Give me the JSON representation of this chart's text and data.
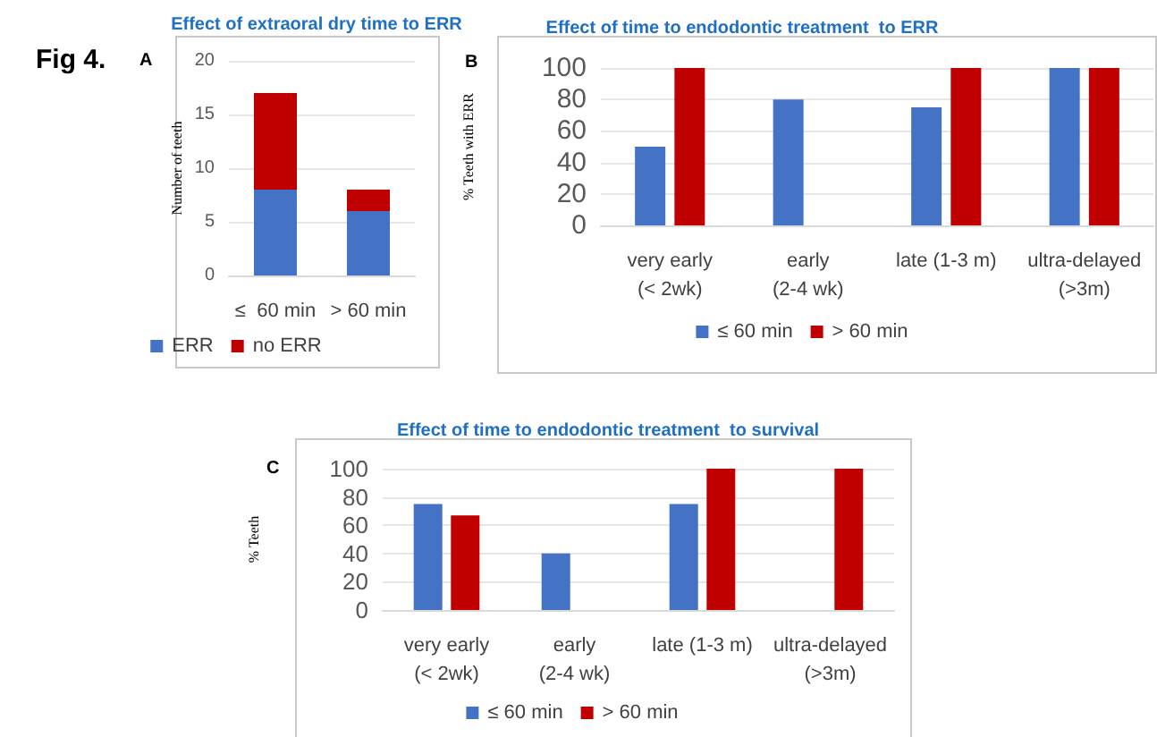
{
  "chart_data": [
    {
      "type": "bar",
      "title": "Effect of extraoral dry time to ERR",
      "ylabel": "Number of teeth",
      "annotations": [
        "Fig 4.",
        "A"
      ],
      "categories": [
        "≤  60 min",
        "> 60 min"
      ],
      "stacked": true,
      "series": [
        {
          "name": "ERR",
          "color": "#4472c4",
          "values": [
            8,
            6
          ]
        },
        {
          "name": "no ERR",
          "color": "#c00000",
          "values": [
            9,
            2
          ]
        }
      ],
      "ylim": [
        0,
        20
      ],
      "yticks": [
        0,
        5,
        10,
        15,
        20
      ],
      "grid": "y",
      "legend": "bottom"
    },
    {
      "type": "bar",
      "title": "Effect of time to endodontic treatment  to ERR",
      "ylabel": "% Teeth with ERR",
      "annotations": [
        "B"
      ],
      "categories": [
        "very early\n(< 2wk)",
        "early\n(2-4 wk)",
        "late (1-3 m)",
        "ultra-delayed\n(>3m)"
      ],
      "series": [
        {
          "name": "≤ 60 min",
          "color": "#4472c4",
          "values": [
            50,
            80,
            75,
            100
          ]
        },
        {
          "name": "> 60 min",
          "color": "#c00000",
          "values": [
            100,
            null,
            100,
            100
          ]
        }
      ],
      "ylim": [
        0,
        100
      ],
      "yticks": [
        0,
        20,
        40,
        60,
        80,
        100
      ],
      "grid": "y",
      "legend": "bottom"
    },
    {
      "type": "bar",
      "title": "Effect of time to endodontic treatment  to survival",
      "ylabel": "% Teeth",
      "annotations": [
        "C"
      ],
      "categories": [
        "very early\n(< 2wk)",
        "early\n(2-4 wk)",
        "late (1-3 m)",
        "ultra-delayed\n(>3m)"
      ],
      "series": [
        {
          "name": "≤ 60 min",
          "color": "#4472c4",
          "values": [
            75,
            40,
            75,
            null
          ]
        },
        {
          "name": "> 60 min",
          "color": "#c00000",
          "values": [
            67,
            null,
            100,
            100
          ]
        }
      ],
      "ylim": [
        0,
        100
      ],
      "yticks": [
        0,
        20,
        40,
        60,
        80,
        100
      ],
      "grid": "y",
      "legend": "bottom"
    }
  ]
}
